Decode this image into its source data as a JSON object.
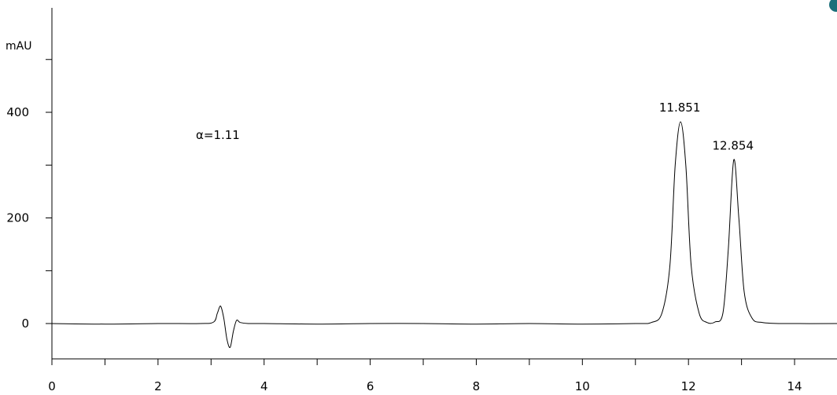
{
  "chart_data": {
    "type": "line",
    "title": "",
    "xlabel": "",
    "ylabel": "mAU",
    "xlim": [
      0,
      14.8
    ],
    "ylim": [
      -65,
      550
    ],
    "grid": false,
    "legend": "none",
    "x_ticks": [
      0,
      2,
      4,
      6,
      8,
      10,
      12,
      14
    ],
    "x_minor_ticks": [
      1,
      3,
      5,
      7,
      9,
      11,
      13
    ],
    "y_ticks": [
      0,
      200,
      400
    ],
    "y_minor_ticks": [
      100,
      300,
      500
    ],
    "x_tick_labels": [
      "0",
      "2",
      "4",
      "6",
      "8",
      "10",
      "12",
      "14"
    ],
    "y_tick_labels": [
      "0",
      "200",
      "400"
    ],
    "annotation": "α=1.11",
    "series": [
      {
        "x": [
          0,
          1.0,
          2.0,
          2.8,
          3.05,
          3.12,
          3.18,
          3.24,
          3.3,
          3.36,
          3.42,
          3.48,
          3.55,
          3.7,
          4.0,
          5.0,
          6.0,
          7.0,
          8.0,
          9.0,
          10.0,
          11.0,
          11.3,
          11.5,
          11.65,
          11.75,
          11.851,
          11.95,
          12.05,
          12.2,
          12.35,
          12.5,
          12.65,
          12.75,
          12.854,
          12.95,
          13.05,
          13.2,
          13.4,
          13.8,
          14.8
        ],
        "y": [
          0,
          -1,
          0,
          0,
          3,
          20,
          33,
          10,
          -30,
          -45,
          -15,
          6,
          2,
          0,
          0,
          -1,
          0,
          0,
          -1,
          0,
          -1,
          0,
          2,
          20,
          110,
          300,
          382,
          300,
          110,
          20,
          2,
          3,
          20,
          140,
          310,
          200,
          60,
          10,
          2,
          0,
          0
        ]
      }
    ],
    "peaks": [
      {
        "x": 11.851,
        "y": 382,
        "label": "11.851"
      },
      {
        "x": 12.854,
        "y": 310,
        "label": "12.854"
      }
    ]
  },
  "colors": {
    "trace": "#000000",
    "axis": "#000000",
    "corner_marker": "#1a6f7a"
  }
}
